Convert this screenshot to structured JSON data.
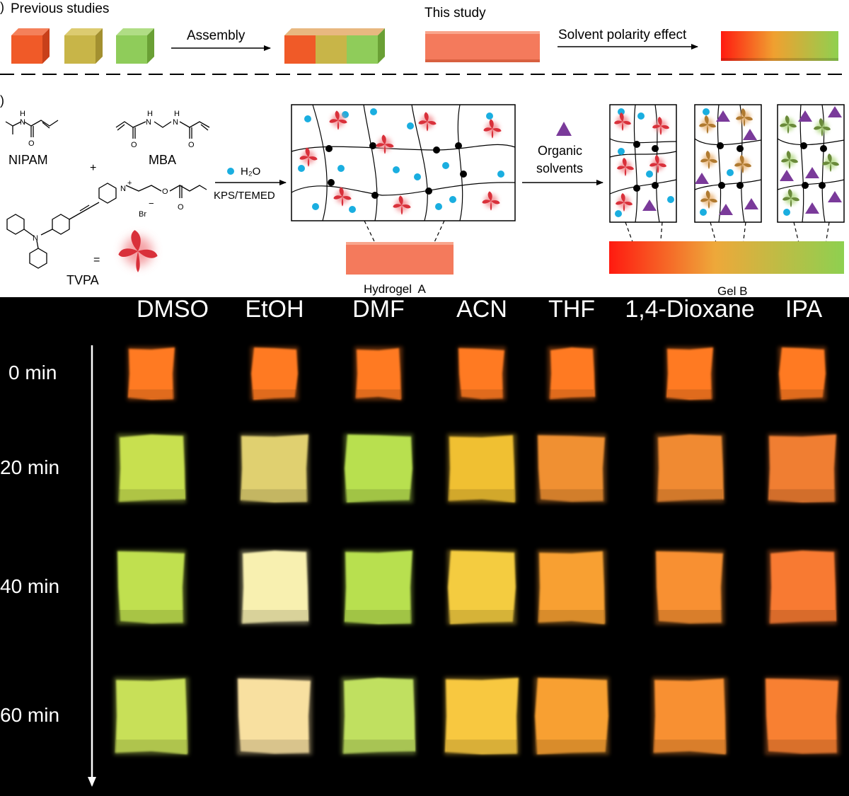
{
  "panel_a": {
    "previous_label": "Previous studies",
    "assembly_label": "Assembly",
    "this_study_label": "This study",
    "solvent_label": "Solvent polarity effect",
    "panel_letter": ")"
  },
  "panel_b": {
    "panel_letter": ")",
    "nipam_label": "NIPAM",
    "mba_label": "MBA",
    "plus_label": "+",
    "tvpa_label": "TVPA",
    "equals_label": "=",
    "br_label": "Br",
    "minus_label": "−",
    "charge_label": "+",
    "nh_label": "H",
    "n_label": "N",
    "o_label": "O",
    "h2o_label": "H₂O",
    "kps_label": "KPS/TEMED",
    "organic_line1": "Organic",
    "organic_line2": "solvents",
    "hydrogel_label": "Hydrogel  A",
    "gel_label": "Gel B"
  },
  "panel_c": {
    "solvents": [
      "DMSO",
      "EtOH",
      "DMF",
      "ACN",
      "THF",
      "1,4-Dioxane",
      "IPA"
    ],
    "times": [
      "0 min",
      "20 min",
      "40 min",
      "60 min"
    ]
  },
  "colors": {
    "red_cube": "#f05a28",
    "olive_cube": "#c8b548",
    "green_cube": "#8fcc5a",
    "study_bar": "#f47a5c",
    "tvpa_red": "#e8323c",
    "water_dot": "#1aaee0",
    "solvent_triangle": "#7a3a9a"
  }
}
